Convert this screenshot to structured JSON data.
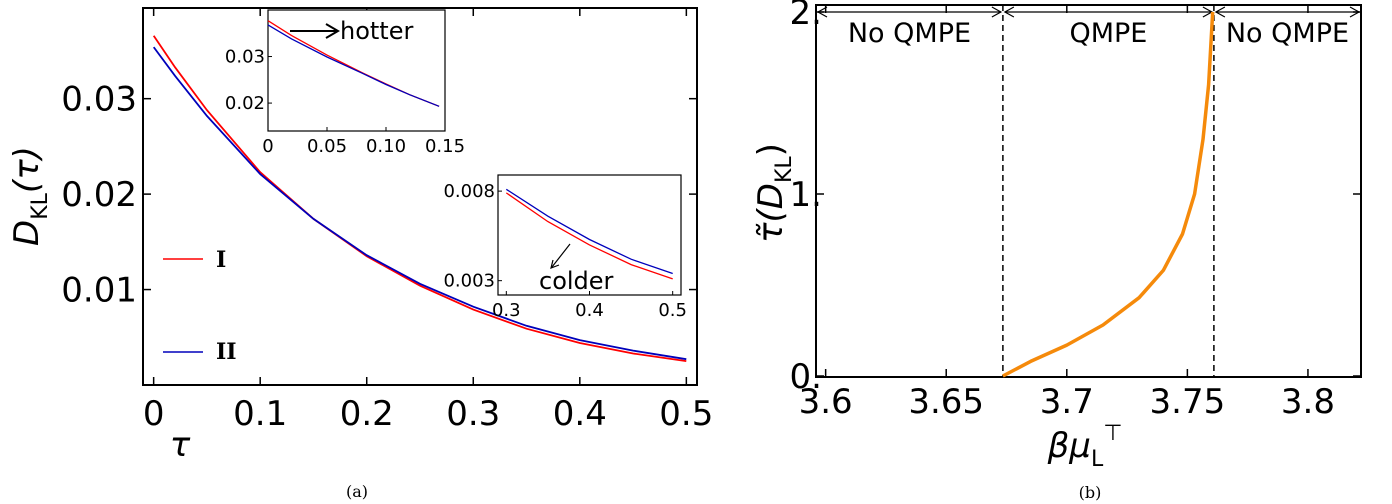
{
  "chart_data": [
    {
      "panel_caption": "(a)",
      "type": "line",
      "xlabel": "τ",
      "ylabel": {
        "main": "D",
        "sub": "KL",
        "tail": "(τ)"
      },
      "xlim": [
        -0.01,
        0.51
      ],
      "ylim": [
        0.0,
        0.0395
      ],
      "xticks": [
        0,
        0.1,
        0.2,
        0.3,
        0.4,
        0.5
      ],
      "xtick_labels": [
        "0",
        "0.1",
        "0.2",
        "0.3",
        "0.4",
        "0.5"
      ],
      "yticks": [
        0.01,
        0.02,
        0.03
      ],
      "ytick_labels": [
        "0.01",
        "0.02",
        "0.03"
      ],
      "grid": false,
      "legend_position": "left",
      "series": [
        {
          "name": "I",
          "color": "#ff0000",
          "points": [
            [
              0,
              0.0366
            ],
            [
              0.02,
              0.0333
            ],
            [
              0.05,
              0.0288
            ],
            [
              0.1,
              0.0223
            ],
            [
              0.15,
              0.0174
            ],
            [
              0.2,
              0.0135
            ],
            [
              0.25,
              0.0104
            ],
            [
              0.3,
              0.0079
            ],
            [
              0.35,
              0.0059
            ],
            [
              0.4,
              0.0044
            ],
            [
              0.45,
              0.0033
            ],
            [
              0.5,
              0.0025
            ]
          ]
        },
        {
          "name": "II",
          "color": "#0000bb",
          "points": [
            [
              0,
              0.0354
            ],
            [
              0.02,
              0.0324
            ],
            [
              0.05,
              0.0282
            ],
            [
              0.1,
              0.0221
            ],
            [
              0.15,
              0.0174
            ],
            [
              0.2,
              0.0136
            ],
            [
              0.25,
              0.0106
            ],
            [
              0.3,
              0.0082
            ],
            [
              0.35,
              0.0062
            ],
            [
              0.4,
              0.0047
            ],
            [
              0.45,
              0.0036
            ],
            [
              0.5,
              0.0027
            ]
          ]
        }
      ],
      "insets": [
        {
          "xlim": [
            0,
            0.15
          ],
          "ylim": [
            0.014,
            0.04
          ],
          "xticks": [
            0,
            0.05,
            0.1,
            0.15
          ],
          "xtick_labels": [
            "0",
            "0.05",
            "0.10",
            "0.15"
          ],
          "yticks": [
            0.02,
            0.03
          ],
          "ytick_labels": [
            "0.02",
            "0.03"
          ],
          "annotation": "hotter",
          "series": [
            {
              "name": "I",
              "color": "#ff0000",
              "points": [
                [
                  0,
                  0.0377
                ],
                [
                  0.02,
                  0.0345
                ],
                [
                  0.05,
                  0.0303
                ],
                [
                  0.08,
                  0.0265
                ],
                [
                  0.1,
                  0.0241
                ],
                [
                  0.12,
                  0.0218
                ],
                [
                  0.145,
                  0.0193
                ]
              ]
            },
            {
              "name": "II",
              "color": "#0000bb",
              "points": [
                [
                  0,
                  0.0368
                ],
                [
                  0.02,
                  0.0338
                ],
                [
                  0.05,
                  0.0299
                ],
                [
                  0.08,
                  0.0264
                ],
                [
                  0.1,
                  0.024
                ],
                [
                  0.12,
                  0.0218
                ],
                [
                  0.145,
                  0.0193
                ]
              ]
            }
          ]
        },
        {
          "xlim": [
            0.29,
            0.51
          ],
          "ylim": [
            0.0022,
            0.0089
          ],
          "xticks": [
            0.3,
            0.4,
            0.5
          ],
          "xtick_labels": [
            "0.3",
            "0.4",
            "0.5"
          ],
          "yticks": [
            0.003,
            0.008
          ],
          "ytick_labels": [
            "0.003",
            "0.008"
          ],
          "annotation": "colder",
          "series": [
            {
              "name": "I",
              "color": "#ff0000",
              "points": [
                [
                  0.3,
                  0.0079
                ],
                [
                  0.35,
                  0.0063
                ],
                [
                  0.4,
                  0.005
                ],
                [
                  0.45,
                  0.0039
                ],
                [
                  0.5,
                  0.0031
                ]
              ]
            },
            {
              "name": "II",
              "color": "#0000bb",
              "points": [
                [
                  0.3,
                  0.0081
                ],
                [
                  0.35,
                  0.0066
                ],
                [
                  0.4,
                  0.0053
                ],
                [
                  0.45,
                  0.0042
                ],
                [
                  0.5,
                  0.0034
                ]
              ]
            }
          ]
        }
      ]
    },
    {
      "panel_caption": "(b)",
      "type": "line",
      "xlabel": {
        "main": "βμ",
        "sub": "L",
        "sup": "⊤"
      },
      "ylabel": {
        "main": "τ̃(D",
        "sub": "KL",
        "tail": ")"
      },
      "xlim": [
        3.596,
        3.822
      ],
      "ylim": [
        0.0,
        2.0
      ],
      "xticks": [
        3.6,
        3.65,
        3.7,
        3.75,
        3.8
      ],
      "xtick_labels": [
        "3.6",
        "3.65",
        "3.7",
        "3.75",
        "3.8"
      ],
      "yticks": [
        0,
        1,
        2
      ],
      "ytick_labels": [
        "0.",
        "1.",
        "2."
      ],
      "grid": false,
      "boundaries": [
        3.6735,
        3.761
      ],
      "regions": [
        "No QMPE",
        "QMPE",
        "No QMPE"
      ],
      "series": [
        {
          "name": "",
          "color": "#f58a0b",
          "points": [
            [
              3.6735,
              0.0
            ],
            [
              3.685,
              0.08
            ],
            [
              3.7,
              0.17
            ],
            [
              3.715,
              0.28
            ],
            [
              3.73,
              0.43
            ],
            [
              3.74,
              0.58
            ],
            [
              3.748,
              0.78
            ],
            [
              3.753,
              1.0
            ],
            [
              3.7565,
              1.3
            ],
            [
              3.7588,
              1.6
            ],
            [
              3.7605,
              2.0
            ]
          ]
        }
      ]
    }
  ]
}
